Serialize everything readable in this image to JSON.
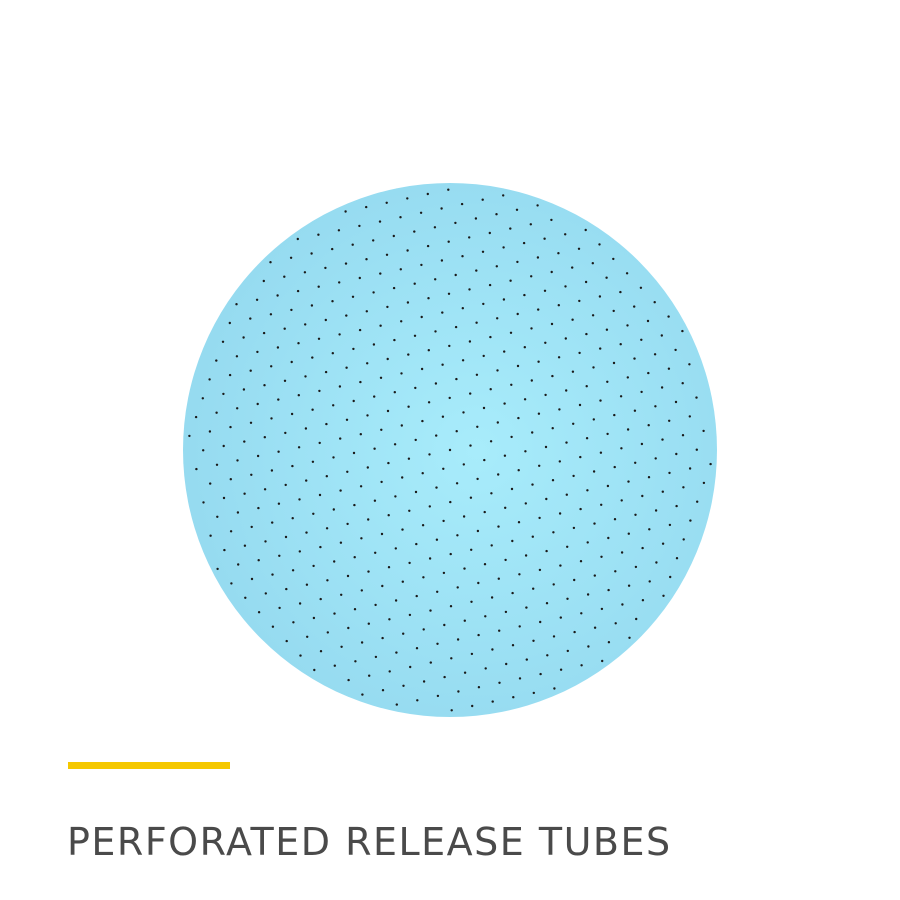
{
  "product": {
    "title": "PERFORATED RELEASE TUBES",
    "image_name": "perforated-release-film-disc"
  },
  "colors": {
    "disc_fill_light": "#a8ecfb",
    "disc_fill_dark": "#94d9ef",
    "perforation": "#1a1a1a",
    "accent": "#f5c800",
    "title_text": "#4a4a4a",
    "background": "#ffffff"
  }
}
